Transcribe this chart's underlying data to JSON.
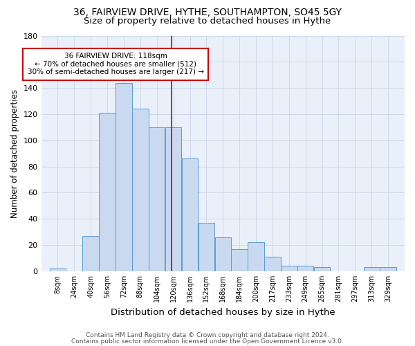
{
  "title1": "36, FAIRVIEW DRIVE, HYTHE, SOUTHAMPTON, SO45 5GY",
  "title2": "Size of property relative to detached houses in Hythe",
  "xlabel": "Distribution of detached houses by size in Hythe",
  "ylabel": "Number of detached properties",
  "categories": [
    "8sqm",
    "24sqm",
    "40sqm",
    "56sqm",
    "72sqm",
    "88sqm",
    "104sqm",
    "120sqm",
    "136sqm",
    "152sqm",
    "168sqm",
    "184sqm",
    "200sqm",
    "217sqm",
    "233sqm",
    "249sqm",
    "265sqm",
    "281sqm",
    "297sqm",
    "313sqm",
    "329sqm"
  ],
  "bin_edges": [
    0,
    16,
    32,
    48,
    64,
    80,
    96,
    112,
    128,
    144,
    160,
    176,
    192,
    208,
    224,
    240,
    256,
    272,
    288,
    304,
    320,
    336
  ],
  "values": [
    2,
    0,
    27,
    121,
    144,
    124,
    110,
    110,
    86,
    37,
    26,
    17,
    22,
    11,
    4,
    4,
    3,
    0,
    0,
    3,
    3
  ],
  "bar_color": "#c9d9f0",
  "bar_edge_color": "#5b9bd5",
  "bg_color": "#eaf0f9",
  "vline_x": 118,
  "vline_color": "#cc0000",
  "annotation_text": "36 FAIRVIEW DRIVE: 118sqm\n← 70% of detached houses are smaller (512)\n30% of semi-detached houses are larger (217) →",
  "annotation_box_color": "#ffffff",
  "annotation_box_edge": "#cc0000",
  "footer1": "Contains HM Land Registry data © Crown copyright and database right 2024.",
  "footer2": "Contains public sector information licensed under the Open Government Licence v3.0.",
  "ylim": [
    0,
    180
  ],
  "title1_fontsize": 10,
  "title2_fontsize": 9.5,
  "xlabel_fontsize": 9.5,
  "ylabel_fontsize": 8.5,
  "tick_fontsize": 7,
  "annotation_fontsize": 7.5,
  "footer_fontsize": 6.5
}
